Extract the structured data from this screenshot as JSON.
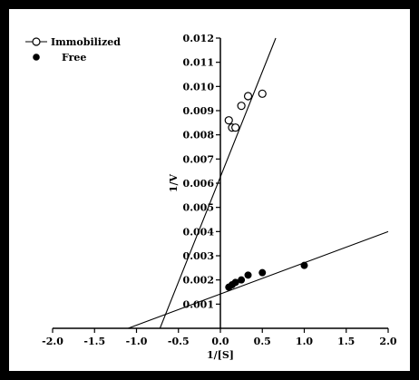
{
  "chart_data": {
    "type": "scatter",
    "title": "",
    "xlabel": "1/[S]",
    "ylabel": "1/V",
    "xlim": [
      -2.0,
      2.0
    ],
    "ylim": [
      0.0,
      0.012
    ],
    "x_ticks": [
      -2.0,
      -1.5,
      -1.0,
      -0.5,
      0.0,
      0.5,
      1.0,
      1.5,
      2.0
    ],
    "x_tick_labels": [
      "-2.0",
      "-1.5",
      "-1.0",
      "-0.5",
      "0.0",
      "0.5",
      "1.0",
      "1.5",
      "2.0"
    ],
    "y_ticks": [
      0.001,
      0.002,
      0.003,
      0.004,
      0.005,
      0.006,
      0.007,
      0.008,
      0.009,
      0.01,
      0.011,
      0.012
    ],
    "y_tick_labels": [
      "0.001",
      "0.002",
      "0.003",
      "0.004",
      "0.005",
      "0.006",
      "0.007",
      "0.008",
      "0.009",
      "0.010",
      "0.011",
      "0.012"
    ],
    "grid": false,
    "legend_position": "top-left",
    "series": [
      {
        "name": "Immobilized",
        "marker": "open-circle",
        "points": [
          {
            "x": 0.1,
            "y": 0.0086
          },
          {
            "x": 0.14,
            "y": 0.0083
          },
          {
            "x": 0.18,
            "y": 0.0083
          },
          {
            "x": 0.25,
            "y": 0.0092
          },
          {
            "x": 0.33,
            "y": 0.0096
          },
          {
            "x": 0.5,
            "y": 0.0097
          }
        ],
        "fit_line": [
          {
            "x": -0.72,
            "y": 0.0
          },
          {
            "x": 0.66,
            "y": 0.012
          }
        ]
      },
      {
        "name": "Free",
        "marker": "filled-circle",
        "points": [
          {
            "x": 0.1,
            "y": 0.0017
          },
          {
            "x": 0.14,
            "y": 0.0018
          },
          {
            "x": 0.18,
            "y": 0.0019
          },
          {
            "x": 0.25,
            "y": 0.002
          },
          {
            "x": 0.33,
            "y": 0.0022
          },
          {
            "x": 0.5,
            "y": 0.0023
          },
          {
            "x": 1.0,
            "y": 0.0026
          }
        ],
        "fit_line": [
          {
            "x": -1.1,
            "y": 0.0
          },
          {
            "x": 2.0,
            "y": 0.004
          }
        ]
      }
    ]
  }
}
